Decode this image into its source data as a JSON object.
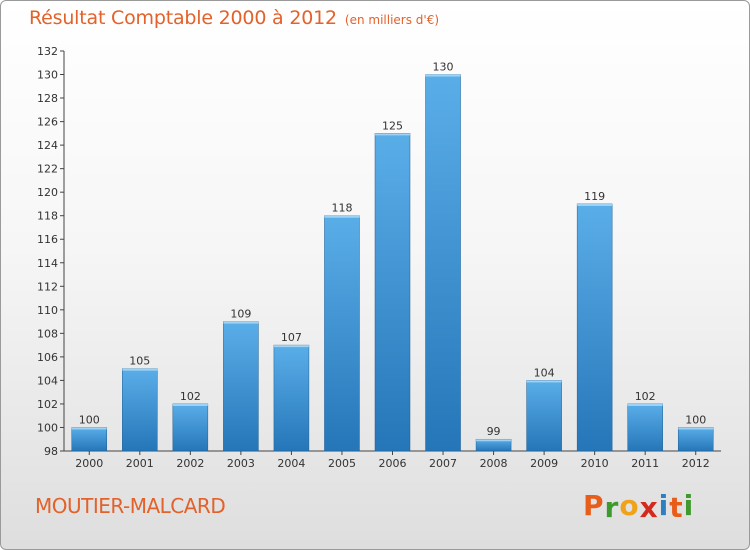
{
  "header": {
    "title": "Résultat Comptable 2000 à 2012",
    "subtitle": "(en milliers d'€)"
  },
  "footer": {
    "commune": "MOUTIER-MALCARD",
    "logo_letters": [
      "P",
      "r",
      "o",
      "x",
      "i",
      "t",
      "i"
    ]
  },
  "colors": {
    "title": "#e3612a",
    "bar_light": "#5aaee8",
    "bar_dark": "#2576b8",
    "logo": [
      "#e85d1a",
      "#3f9a2e",
      "#f0a21a",
      "#d42a1e",
      "#2d7fc1",
      "#e85d1a",
      "#3f9a2e"
    ]
  },
  "chart_data": {
    "type": "bar",
    "title": "Résultat Comptable 2000 à 2012",
    "xlabel": "",
    "ylabel": "",
    "categories": [
      "2000",
      "2001",
      "2002",
      "2003",
      "2004",
      "2005",
      "2006",
      "2007",
      "2008",
      "2009",
      "2010",
      "2011",
      "2012"
    ],
    "values": [
      100,
      105,
      102,
      109,
      107,
      118,
      125,
      130,
      99,
      104,
      119,
      102,
      100
    ],
    "ylim": [
      98,
      132
    ],
    "yticks": [
      98,
      100,
      102,
      104,
      106,
      108,
      110,
      112,
      114,
      116,
      118,
      120,
      122,
      124,
      126,
      128,
      130,
      132
    ],
    "grid": false
  }
}
